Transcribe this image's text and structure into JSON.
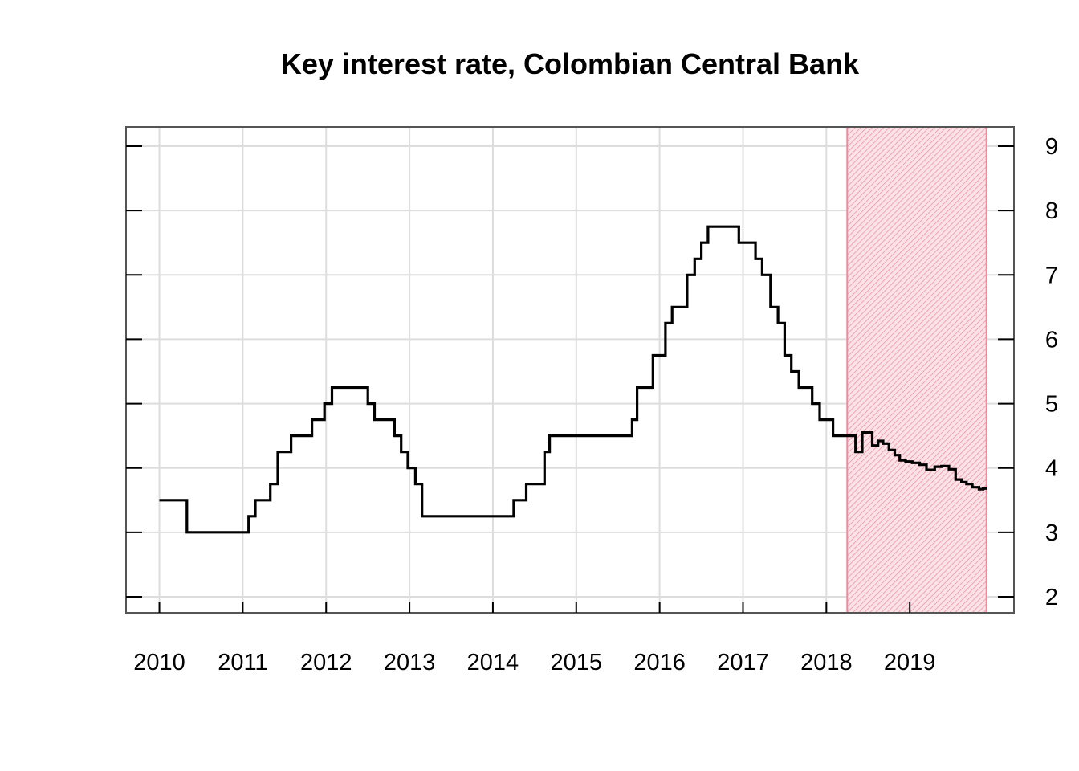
{
  "chart_data": {
    "type": "line",
    "step": true,
    "title": "Key interest rate, Colombian Central Bank",
    "xlabel": "",
    "ylabel": "",
    "xlim": [
      2009.6,
      2020.25
    ],
    "ylim": [
      1.75,
      9.3
    ],
    "x_ticks": [
      2010,
      2011,
      2012,
      2013,
      2014,
      2015,
      2016,
      2017,
      2018,
      2019
    ],
    "x_tick_labels": [
      "2010",
      "2011",
      "2012",
      "2013",
      "2014",
      "2015",
      "2016",
      "2017",
      "2018",
      "2019"
    ],
    "y_ticks": [
      2,
      3,
      4,
      5,
      6,
      7,
      8,
      9
    ],
    "y_tick_labels": [
      "2",
      "3",
      "4",
      "5",
      "6",
      "7",
      "8",
      "9"
    ],
    "y_axis_side": "right",
    "grid": true,
    "colors": {
      "line": "#000000",
      "grid": "#dddddd",
      "frame": "#555555",
      "forecast_fill": "#f4a7b6",
      "forecast_border": "#ee8a9e"
    },
    "forecast_region": {
      "x_start": 2018.25,
      "x_end": 2019.92
    },
    "series": [
      {
        "x": [
          2010.0,
          2010.33,
          2011.07,
          2011.15,
          2011.23,
          2011.33,
          2011.42,
          2011.58,
          2011.83,
          2011.98,
          2012.07,
          2012.5,
          2012.58,
          2012.82,
          2012.9,
          2012.98,
          2013.07,
          2013.15,
          2014.25,
          2014.4,
          2014.55,
          2014.62,
          2014.68,
          2015.67,
          2015.73,
          2015.92,
          2016.07,
          2016.15,
          2016.25,
          2016.33,
          2016.42,
          2016.5,
          2016.58,
          2016.67,
          2016.95,
          2017.15,
          2017.23,
          2017.33,
          2017.42,
          2017.5,
          2017.58,
          2017.67,
          2017.83,
          2017.92,
          2018.08,
          2018.25,
          2018.35,
          2018.43,
          2018.55,
          2018.62,
          2018.68,
          2018.75,
          2018.82,
          2018.88,
          2018.95,
          2019.03,
          2019.12,
          2019.2,
          2019.3,
          2019.38,
          2019.47,
          2019.55,
          2019.62,
          2019.68,
          2019.75,
          2019.83,
          2019.88
        ],
        "y": [
          3.5,
          3.0,
          3.25,
          3.5,
          3.5,
          3.75,
          4.25,
          4.5,
          4.75,
          5.0,
          5.25,
          5.0,
          4.75,
          4.5,
          4.25,
          4.0,
          3.75,
          3.25,
          3.5,
          3.75,
          3.75,
          4.25,
          4.5,
          4.75,
          5.25,
          5.75,
          6.25,
          6.5,
          6.5,
          7.0,
          7.25,
          7.5,
          7.75,
          7.75,
          7.5,
          7.25,
          7.0,
          6.5,
          6.25,
          5.75,
          5.5,
          5.25,
          5.0,
          4.75,
          4.5,
          4.5,
          4.25,
          4.55,
          4.35,
          4.42,
          4.38,
          4.28,
          4.2,
          4.12,
          4.1,
          4.08,
          4.05,
          3.97,
          4.02,
          4.03,
          3.98,
          3.82,
          3.78,
          3.75,
          3.7,
          3.67,
          3.68
        ],
        "line_width": 3.2
      }
    ]
  }
}
